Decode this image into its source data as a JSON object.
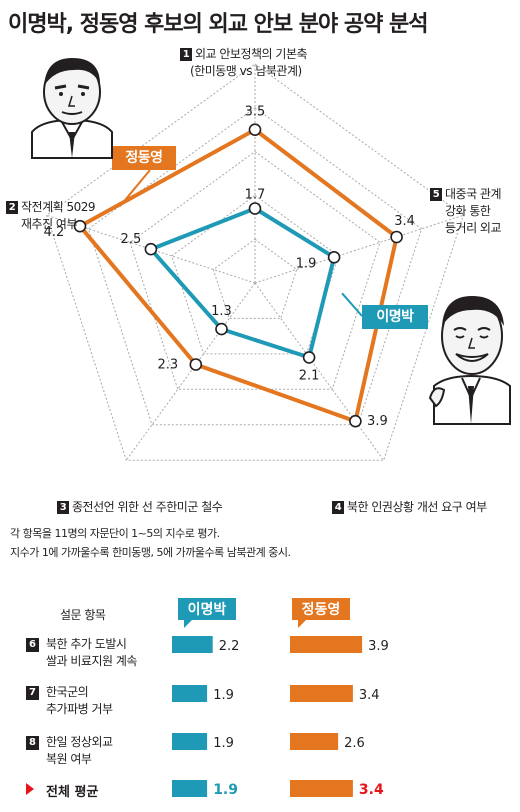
{
  "title": "이명박, 정동영 후보의 외교 안보 분야 공약 분석",
  "radar": {
    "axes": [
      {
        "num": "1",
        "lines": [
          "외교 안보정책의 기본축",
          "(한미동맹 vs 남북관계)"
        ]
      },
      {
        "num": "5",
        "lines": [
          "대중국 관계",
          "강화 통한",
          "등거리 외교"
        ]
      },
      {
        "num": "4",
        "lines": [
          "북한 인권상황 개선 요구 여부"
        ]
      },
      {
        "num": "3",
        "lines": [
          "종전선언 위한 선 주한미군 철수"
        ]
      },
      {
        "num": "2",
        "lines": [
          "작전계획 5029",
          "재추진 여부"
        ]
      }
    ]
  },
  "candidates": {
    "lee": {
      "name": "이명박",
      "color": "#1f9ab6"
    },
    "chung": {
      "name": "정동영",
      "color": "#e3761f"
    }
  },
  "notes": [
    "각 항목을 11명의 자문단이 1~5의 지수로 평가.",
    "지수가 1에 가까울수록 한미동맹, 5에 가까울수록 남북관계 중시."
  ],
  "survey": {
    "header": "설문 항목",
    "items": [
      {
        "num": "6",
        "lines": [
          "북한 추가 도발시",
          "쌀과 비료지원 계속"
        ]
      },
      {
        "num": "7",
        "lines": [
          "한국군의",
          "추가파병 거부"
        ]
      },
      {
        "num": "8",
        "lines": [
          "한일 정상외교",
          "복원 여부"
        ]
      }
    ],
    "average_label": "전체 평균"
  },
  "chart_data": [
    {
      "type": "radar",
      "scale": [
        0,
        5
      ],
      "categories": [
        "1",
        "5",
        "4",
        "3",
        "2"
      ],
      "series": [
        {
          "name": "정동영",
          "values": [
            3.5,
            3.4,
            3.9,
            2.3,
            4.2
          ],
          "labels": [
            "3.5",
            "3.4",
            "3.9",
            "2.3",
            "4.2"
          ]
        },
        {
          "name": "이명박",
          "values": [
            1.7,
            1.9,
            2.1,
            1.3,
            2.5
          ],
          "labels": [
            "1.7",
            "1.9",
            "2.1",
            "1.3",
            "2.5"
          ]
        }
      ]
    },
    {
      "type": "bar",
      "orientation": "horizontal",
      "categories": [
        "6",
        "7",
        "8",
        "전체 평균"
      ],
      "series": [
        {
          "name": "이명박",
          "values": [
            2.2,
            1.9,
            1.9,
            1.9
          ],
          "labels": [
            "2.2",
            "1.9",
            "1.9",
            "1.9"
          ]
        },
        {
          "name": "정동영",
          "values": [
            3.9,
            3.4,
            2.6,
            3.4
          ],
          "labels": [
            "3.9",
            "3.4",
            "2.6",
            "3.4"
          ]
        }
      ]
    }
  ]
}
